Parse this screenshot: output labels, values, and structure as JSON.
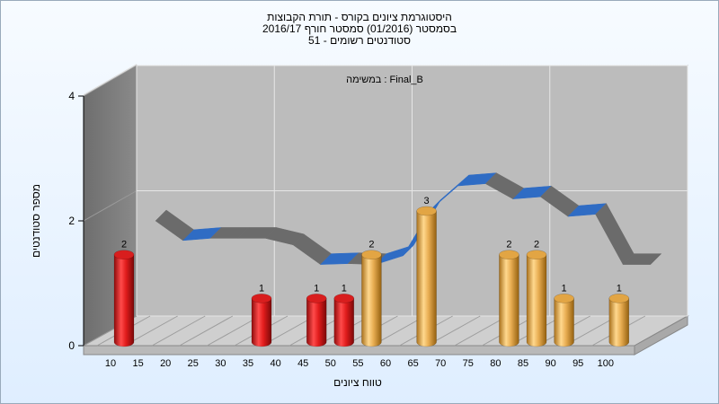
{
  "title_lines": [
    "היסטוגרמת ציונים בקורס - תורת הקבוצות",
    "בסמסטר  (01/2016)  סמסטר חורף 2016/17",
    "סטודנטים רשומים - 51"
  ],
  "chart_data": {
    "type": "bar",
    "title": "היסטוגרמת ציונים בקורס - תורת הקבוצות",
    "subtitle": "במשימה : Final_B",
    "xlabel": "טווח ציונים",
    "ylabel": "מספר סטודנטים",
    "ylim": [
      0,
      4
    ],
    "yticks": [
      0,
      2,
      4
    ],
    "x_ticks": [
      "10",
      "15",
      "20",
      "25",
      "30",
      "35",
      "40",
      "45",
      "50",
      "55",
      "60",
      "65",
      "70",
      "75",
      "80",
      "85",
      "90",
      "95",
      "100"
    ],
    "bars": [
      {
        "x": 10,
        "value": 2,
        "label": "2",
        "color": "#d81e1e"
      },
      {
        "x": 35,
        "value": 1,
        "label": "1",
        "color": "#d81e1e"
      },
      {
        "x": 45,
        "value": 1,
        "label": "1",
        "color": "#d81e1e"
      },
      {
        "x": 50,
        "value": 1,
        "label": "1",
        "color": "#d81e1e"
      },
      {
        "x": 55,
        "value": 2,
        "label": "2",
        "color": "#e2a544"
      },
      {
        "x": 65,
        "value": 3,
        "label": "3",
        "color": "#e2a544"
      },
      {
        "x": 80,
        "value": 2,
        "label": "2",
        "color": "#e2a544"
      },
      {
        "x": 85,
        "value": 2,
        "label": "2",
        "color": "#e2a544"
      },
      {
        "x": 90,
        "value": 1,
        "label": "1",
        "color": "#e2a544"
      },
      {
        "x": 100,
        "value": 1,
        "label": "1",
        "color": "#e2a544"
      }
    ],
    "trend_line": {
      "x": [
        10,
        15,
        20,
        25,
        30,
        35,
        40,
        45,
        50,
        55,
        60,
        65,
        70,
        75,
        80,
        85,
        90,
        95,
        100
      ],
      "values": [
        2.2,
        1.75,
        1.8,
        1.8,
        1.8,
        1.65,
        1.2,
        1.22,
        1.2,
        1.4,
        2.45,
        3.0,
        3.05,
        2.7,
        2.75,
        2.3,
        2.35,
        1.2,
        1.2
      ]
    },
    "colors": {
      "failing_bars": "#d81e1e",
      "passing_bars": "#e2a544",
      "trend_front": "#2f6cc4",
      "trend_back": "#6b6b6b"
    },
    "grid": true
  }
}
